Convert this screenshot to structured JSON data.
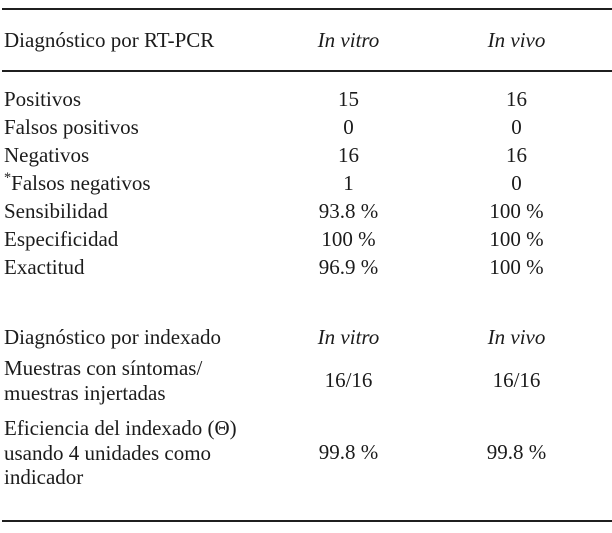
{
  "table": {
    "section1": {
      "title": "Diagnóstico por RT-PCR",
      "col_vitro": "In vitro",
      "col_vivo": "In vivo",
      "rows": [
        {
          "prefix": "",
          "label": "Positivos",
          "vitro": "15",
          "vivo": "16"
        },
        {
          "prefix": "",
          "label": "Falsos positivos",
          "vitro": "0",
          "vivo": "0"
        },
        {
          "prefix": "",
          "label": "Negativos",
          "vitro": "16",
          "vivo": "16"
        },
        {
          "prefix": "*",
          "label": "Falsos negativos",
          "vitro": "1",
          "vivo": "0"
        },
        {
          "prefix": "",
          "label": "Sensibilidad",
          "vitro": "93.8 %",
          "vivo": "100 %"
        },
        {
          "prefix": "",
          "label": "Especificidad",
          "vitro": "100 %",
          "vivo": "100 %"
        },
        {
          "prefix": "",
          "label": "Exactitud",
          "vitro": "96.9 %",
          "vivo": "100 %"
        }
      ]
    },
    "section2": {
      "title": "Diagnóstico por indexado",
      "col_vitro": "In vitro",
      "col_vivo": "In vivo",
      "rows": [
        {
          "label": "Muestras con síntomas/\nmuestras injertadas",
          "vitro": "16/16",
          "vivo": "16/16"
        },
        {
          "label": "Eficiencia del indexado (Θ)\nusando 4 unidades como\nindicador",
          "vitro": "99.8 %",
          "vivo": "99.8 %"
        }
      ]
    },
    "colors": {
      "text": "#1b1b1b",
      "rule": "#1f1f1f",
      "background": "#ffffff"
    }
  }
}
